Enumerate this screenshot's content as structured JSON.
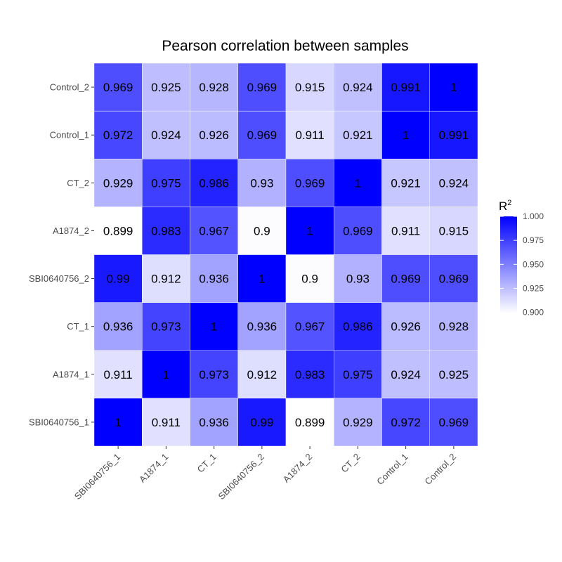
{
  "chart_data": {
    "type": "heatmap",
    "title": "Pearson correlation between samples",
    "x_categories": [
      "SBI0640756_1",
      "A1874_1",
      "CT_1",
      "SBI0640756_2",
      "A1874_2",
      "CT_2",
      "Control_1",
      "Control_2"
    ],
    "y_categories": [
      "SBI0640756_1",
      "A1874_1",
      "CT_1",
      "SBI0640756_2",
      "A1874_2",
      "CT_2",
      "Control_1",
      "Control_2"
    ],
    "values": [
      [
        1,
        0.911,
        0.936,
        0.99,
        0.899,
        0.929,
        0.972,
        0.969
      ],
      [
        0.911,
        1,
        0.973,
        0.912,
        0.983,
        0.975,
        0.924,
        0.925
      ],
      [
        0.936,
        0.973,
        1,
        0.936,
        0.967,
        0.986,
        0.926,
        0.928
      ],
      [
        0.99,
        0.912,
        0.936,
        1,
        0.9,
        0.93,
        0.969,
        0.969
      ],
      [
        0.899,
        0.983,
        0.967,
        0.9,
        1,
        0.969,
        0.911,
        0.915
      ],
      [
        0.929,
        0.975,
        0.986,
        0.93,
        0.969,
        1,
        0.921,
        0.924
      ],
      [
        0.972,
        0.924,
        0.926,
        0.969,
        0.911,
        0.921,
        1,
        0.991
      ],
      [
        0.969,
        0.925,
        0.928,
        0.969,
        0.915,
        0.924,
        0.991,
        1
      ]
    ],
    "value_labels": [
      [
        "1",
        "0.911",
        "0.936",
        "0.99",
        "0.899",
        "0.929",
        "0.972",
        "0.969"
      ],
      [
        "0.911",
        "1",
        "0.973",
        "0.912",
        "0.983",
        "0.975",
        "0.924",
        "0.925"
      ],
      [
        "0.936",
        "0.973",
        "1",
        "0.936",
        "0.967",
        "0.986",
        "0.926",
        "0.928"
      ],
      [
        "0.99",
        "0.912",
        "0.936",
        "1",
        "0.9",
        "0.93",
        "0.969",
        "0.969"
      ],
      [
        "0.899",
        "0.983",
        "0.967",
        "0.9",
        "1",
        "0.969",
        "0.911",
        "0.915"
      ],
      [
        "0.929",
        "0.975",
        "0.986",
        "0.93",
        "0.969",
        "1",
        "0.921",
        "0.924"
      ],
      [
        "0.972",
        "0.924",
        "0.926",
        "0.969",
        "0.911",
        "0.921",
        "1",
        "0.991"
      ],
      [
        "0.969",
        "0.925",
        "0.928",
        "0.969",
        "0.915",
        "0.924",
        "0.991",
        "1"
      ]
    ],
    "color_scale": {
      "low": "#ffffff",
      "high": "#0000ff",
      "range": [
        0.899,
        1.0
      ]
    },
    "legend": {
      "title": "R",
      "title_superscript": "2",
      "ticks": [
        1.0,
        0.975,
        0.95,
        0.925,
        0.9
      ],
      "tick_labels": [
        "1.000",
        "0.975",
        "0.950",
        "0.925",
        "0.900"
      ],
      "position": "right"
    },
    "grid": true
  }
}
